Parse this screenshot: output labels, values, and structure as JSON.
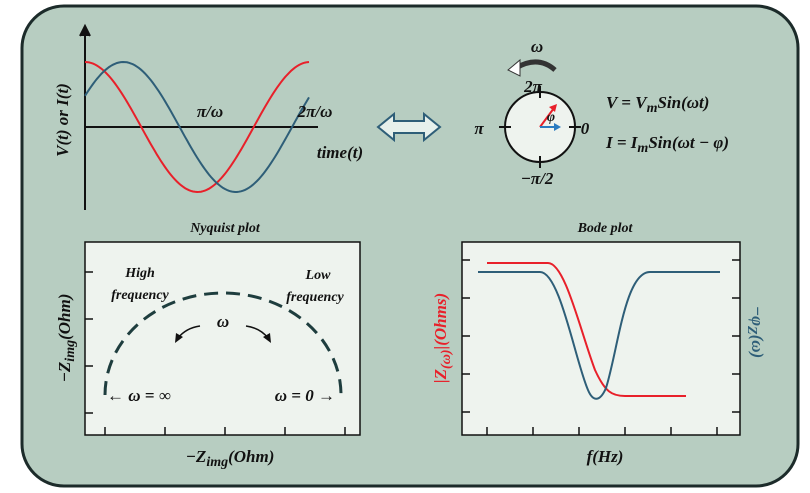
{
  "time_plot": {
    "y_axis_label": "V(t) or I(t)",
    "x_axis_label": "time(t)",
    "tick_labels": [
      "π/ω",
      "2π/ω"
    ]
  },
  "phasor": {
    "rotation": "ω",
    "top": "2π",
    "left": "π",
    "right": "0",
    "bottom": "−π/2",
    "phase": "φ"
  },
  "equations": [
    [
      "V = V",
      "m",
      "Sin(ωt)"
    ],
    [
      "I = I",
      "m",
      "Sin(ωt − φ)"
    ]
  ],
  "nyquist": {
    "title": "Nyquist plot",
    "high": [
      "High",
      "frequency"
    ],
    "low": [
      "Low",
      "frequency"
    ],
    "rotation": "ω",
    "left_end": "← ω = ∞",
    "right_end": "ω = 0 →",
    "x_axis_label": [
      "−Z",
      "img",
      "(Ohm)"
    ],
    "y_axis_label": [
      "−Z",
      "img",
      "(Ohm)"
    ]
  },
  "bode": {
    "title": "Bode plot",
    "left_axis_label": [
      "|Z",
      "(ω)",
      "|(Ohms)"
    ],
    "right_axis_label": [
      "−φ",
      "Z",
      "(ω)"
    ],
    "x_axis_label": "f(Hz)"
  }
}
